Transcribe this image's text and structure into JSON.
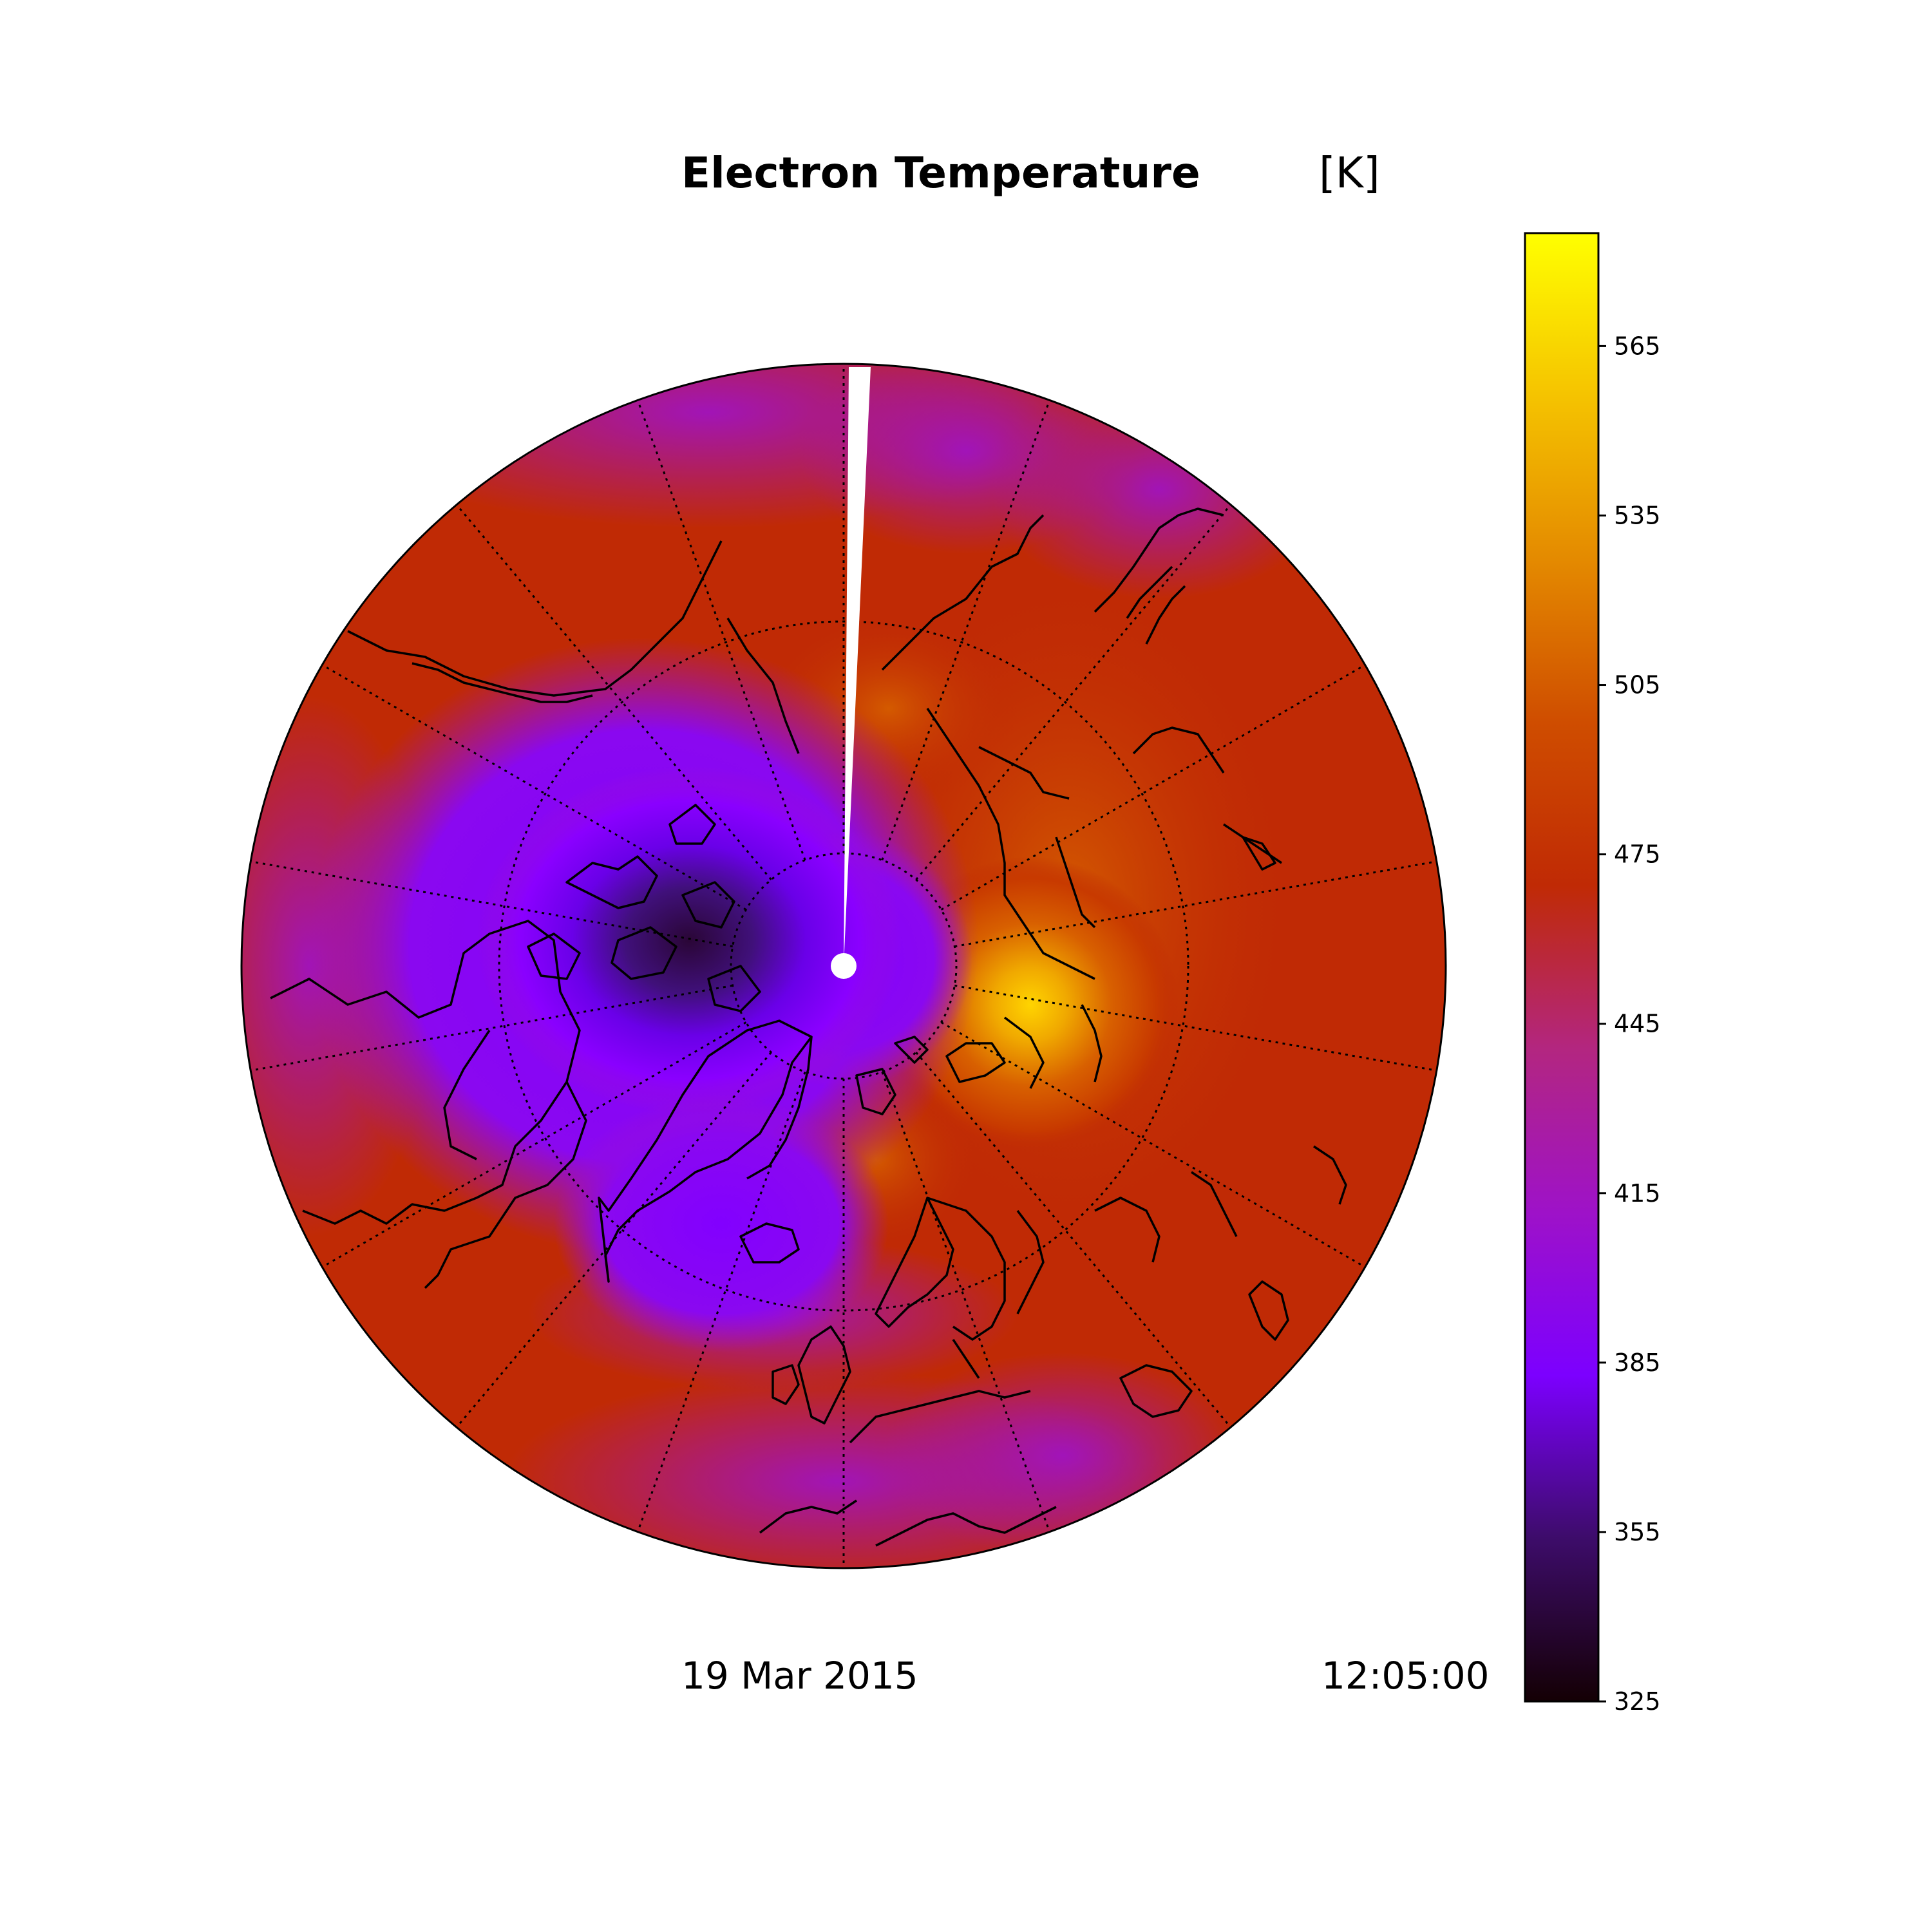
{
  "title": "Electron Temperature",
  "units": "[K]",
  "date": "19 Mar 2015",
  "time": "12:05:00",
  "projection": "north-polar-stereographic",
  "colormap": "gnuplot",
  "colorbar": {
    "range": [
      325,
      585
    ],
    "ticks": [
      "325",
      "355",
      "385",
      "415",
      "445",
      "475",
      "505",
      "535",
      "565"
    ],
    "colors": [
      "#140004",
      "#3d0c6a",
      "#7c00ff",
      "#9e12c8",
      "#b32680",
      "#c02a05",
      "#cf4d00",
      "#e48a00",
      "#f5c300",
      "#ffff00"
    ]
  },
  "field_features": [
    {
      "region": "minimum-over-arctic-canada-greenland",
      "value": 335
    },
    {
      "region": "maximum-over-siberia",
      "value": 570
    },
    {
      "region": "background-mid-latitudes",
      "value": 470
    },
    {
      "region": "ring-over-pacific-and-atlantic",
      "value": 440
    }
  ]
}
